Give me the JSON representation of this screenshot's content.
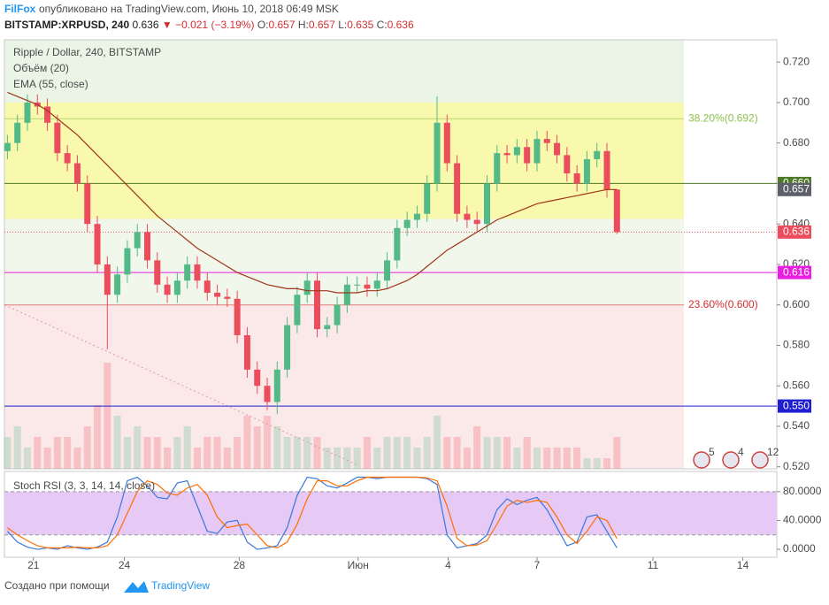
{
  "header": {
    "brand": "FilFox",
    "published": "опубликовано на TradingView.com, Июнь 10, 2018 06:49 MSK",
    "symbol": "BITSTAMP:XRPUSD, 240",
    "last": "0.636",
    "change": "▼ −0.021 (−3.19%)",
    "ohlc": [
      "O:",
      "0.657",
      "H:",
      "0.657",
      "L:",
      "0.635",
      "C:",
      "0.636"
    ]
  },
  "footer": {
    "text": "Создано при помощи",
    "brand": "TradingView"
  },
  "events": [
    "5",
    "4",
    "12"
  ],
  "chart_data": [
    {
      "type": "candlestick",
      "title": "Ripple / Dollar, 240, BITSTAMP",
      "x": [
        0,
        1,
        2,
        3,
        4,
        5,
        6,
        7,
        8,
        9,
        10,
        11,
        12,
        13,
        14,
        15,
        16,
        17,
        18,
        19,
        20,
        21,
        22,
        23,
        24,
        25,
        26,
        27,
        28,
        29,
        30,
        31,
        32,
        33,
        34,
        35,
        36,
        37,
        38,
        39,
        40,
        41,
        42,
        43,
        44,
        45,
        46,
        47,
        48,
        49,
        50,
        51,
        52,
        53,
        54,
        55,
        56,
        57,
        58,
        59,
        60,
        61
      ],
      "open": [
        0.676,
        0.68,
        0.69,
        0.7,
        0.698,
        0.69,
        0.675,
        0.67,
        0.66,
        0.64,
        0.62,
        0.605,
        0.615,
        0.628,
        0.636,
        0.622,
        0.61,
        0.605,
        0.612,
        0.62,
        0.612,
        0.606,
        0.604,
        0.603,
        0.585,
        0.568,
        0.56,
        0.552,
        0.568,
        0.59,
        0.605,
        0.612,
        0.588,
        0.59,
        0.6,
        0.61,
        0.61,
        0.608,
        0.612,
        0.622,
        0.638,
        0.642,
        0.645,
        0.66,
        0.69,
        0.67,
        0.645,
        0.642,
        0.64,
        0.66,
        0.675,
        0.674,
        0.678,
        0.67,
        0.682,
        0.68,
        0.674,
        0.665,
        0.66,
        0.672,
        0.676,
        0.657
      ],
      "high": [
        0.684,
        0.694,
        0.704,
        0.704,
        0.702,
        0.694,
        0.679,
        0.674,
        0.664,
        0.644,
        0.624,
        0.619,
        0.632,
        0.64,
        0.64,
        0.626,
        0.614,
        0.616,
        0.624,
        0.624,
        0.616,
        0.61,
        0.608,
        0.607,
        0.589,
        0.572,
        0.564,
        0.572,
        0.594,
        0.609,
        0.616,
        0.616,
        0.594,
        0.604,
        0.614,
        0.614,
        0.614,
        0.616,
        0.626,
        0.642,
        0.646,
        0.649,
        0.664,
        0.703,
        0.694,
        0.674,
        0.649,
        0.646,
        0.664,
        0.679,
        0.679,
        0.682,
        0.682,
        0.686,
        0.686,
        0.684,
        0.678,
        0.669,
        0.676,
        0.68,
        0.68,
        0.657
      ],
      "low": [
        0.672,
        0.676,
        0.686,
        0.694,
        0.686,
        0.671,
        0.666,
        0.656,
        0.636,
        0.616,
        0.578,
        0.601,
        0.611,
        0.624,
        0.618,
        0.606,
        0.601,
        0.601,
        0.608,
        0.608,
        0.602,
        0.6,
        0.599,
        0.581,
        0.564,
        0.556,
        0.548,
        0.546,
        0.564,
        0.586,
        0.601,
        0.584,
        0.584,
        0.586,
        0.596,
        0.606,
        0.604,
        0.604,
        0.608,
        0.618,
        0.634,
        0.638,
        0.641,
        0.656,
        0.666,
        0.641,
        0.638,
        0.636,
        0.636,
        0.656,
        0.67,
        0.67,
        0.666,
        0.666,
        0.676,
        0.67,
        0.661,
        0.656,
        0.656,
        0.668,
        0.653,
        0.635
      ],
      "close": [
        0.68,
        0.69,
        0.7,
        0.698,
        0.69,
        0.675,
        0.67,
        0.66,
        0.64,
        0.62,
        0.605,
        0.615,
        0.628,
        0.636,
        0.622,
        0.61,
        0.605,
        0.612,
        0.62,
        0.612,
        0.606,
        0.604,
        0.603,
        0.585,
        0.568,
        0.56,
        0.552,
        0.568,
        0.59,
        0.605,
        0.612,
        0.588,
        0.59,
        0.6,
        0.61,
        0.61,
        0.608,
        0.612,
        0.622,
        0.638,
        0.642,
        0.645,
        0.66,
        0.69,
        0.67,
        0.645,
        0.642,
        0.64,
        0.66,
        0.675,
        0.674,
        0.678,
        0.67,
        0.682,
        0.68,
        0.674,
        0.665,
        0.66,
        0.672,
        0.676,
        0.657,
        0.636
      ],
      "up_color": "#53b987",
      "down_color": "#eb4d5c",
      "volume": {
        "name": "Объём (20)",
        "vlim": [
          0,
          10
        ],
        "values": [
          3,
          4,
          2,
          3,
          2,
          3,
          3,
          2,
          4,
          6,
          10,
          5,
          3,
          4,
          3,
          3,
          2,
          3,
          4,
          2,
          3,
          3,
          2,
          3,
          5,
          4,
          5,
          4,
          3,
          3,
          3,
          3,
          2,
          2,
          2,
          2,
          3,
          2,
          3,
          3,
          3,
          2,
          3,
          5,
          3,
          3,
          2,
          4,
          3,
          3,
          3,
          2,
          3,
          2,
          2,
          2,
          2,
          2,
          1,
          1,
          1,
          3
        ]
      },
      "ema": {
        "name": "EMA (55, close)",
        "color": "#a0361b",
        "values": [
          0.705,
          0.703,
          0.701,
          0.699,
          0.696,
          0.692,
          0.688,
          0.684,
          0.679,
          0.674,
          0.669,
          0.664,
          0.659,
          0.654,
          0.649,
          0.644,
          0.64,
          0.636,
          0.632,
          0.628,
          0.625,
          0.622,
          0.619,
          0.616,
          0.614,
          0.612,
          0.61,
          0.609,
          0.608,
          0.608,
          0.607,
          0.607,
          0.607,
          0.606,
          0.606,
          0.606,
          0.607,
          0.607,
          0.608,
          0.61,
          0.612,
          0.615,
          0.619,
          0.623,
          0.627,
          0.63,
          0.633,
          0.636,
          0.639,
          0.642,
          0.644,
          0.646,
          0.648,
          0.65,
          0.651,
          0.652,
          0.653,
          0.654,
          0.655,
          0.656,
          0.657,
          0.657
        ]
      },
      "zones": [
        {
          "from": 0.7,
          "to": 0.731,
          "color": "#eaf5e6"
        },
        {
          "from": 0.6425,
          "to": 0.7,
          "color": "#f9f9ad"
        },
        {
          "from": 0.6,
          "to": 0.6425,
          "color": "#f1f7ea"
        },
        {
          "from": 0.519,
          "to": 0.6,
          "color": "#fbe9e9"
        }
      ],
      "fib": [
        {
          "value": 0.692,
          "label": "38.20%(0.692)",
          "color": "#8bc34a"
        },
        {
          "value": 0.6,
          "label": "23.60%(0.600)",
          "color": "#d32f2f"
        }
      ],
      "levels": [
        {
          "value": 0.66,
          "label": "0.660",
          "color": "#4f7a28"
        },
        {
          "value": 0.657,
          "label": "0.657",
          "color": "#5d606b"
        },
        {
          "value": 0.636,
          "label": "0.636",
          "color": "#eb4d5c"
        },
        {
          "value": 0.616,
          "label": "0.616",
          "color": "#e91ee0"
        },
        {
          "value": 0.55,
          "label": "0.550",
          "color": "#1e1ed2"
        }
      ],
      "trendline": {
        "x": [
          -0.3,
          35
        ],
        "y": [
          0.6,
          0.521
        ]
      },
      "xlim": [
        -0.3,
        77
      ],
      "xticks": [
        {
          "value": 2.6,
          "label": "21"
        },
        {
          "value": 11.7,
          "label": "24"
        },
        {
          "value": 23.2,
          "label": "28"
        },
        {
          "value": 35.1,
          "label": "Июн"
        },
        {
          "value": 44.1,
          "label": "4"
        },
        {
          "value": 53.0,
          "label": "7"
        },
        {
          "value": 64.6,
          "label": "11"
        },
        {
          "value": 73.6,
          "label": "14"
        }
      ],
      "ylim": [
        0.519,
        0.731
      ],
      "yticks": [
        {
          "value": 0.72,
          "label": "0.720"
        },
        {
          "value": 0.7,
          "label": "0.700"
        },
        {
          "value": 0.68,
          "label": "0.680"
        },
        {
          "value": 0.66,
          "label": "0.660"
        },
        {
          "value": 0.64,
          "label": "0.640"
        },
        {
          "value": 0.62,
          "label": "0.620"
        },
        {
          "value": 0.6,
          "label": "0.600"
        },
        {
          "value": 0.58,
          "label": "0.580"
        },
        {
          "value": 0.56,
          "label": "0.560"
        },
        {
          "value": 0.54,
          "label": "0.540"
        },
        {
          "value": 0.52,
          "label": "0.520"
        }
      ]
    },
    {
      "type": "line",
      "title": "Stoch RSI (3, 3, 14, 14, close)",
      "series": [
        {
          "color": "#3c78d8",
          "values": [
            25,
            10,
            3,
            0,
            2,
            0,
            5,
            2,
            0,
            3,
            10,
            45,
            95,
            100,
            88,
            72,
            70,
            92,
            95,
            60,
            25,
            22,
            38,
            40,
            10,
            0,
            2,
            5,
            30,
            75,
            100,
            98,
            88,
            85,
            92,
            100,
            100,
            98,
            100,
            100,
            100,
            100,
            98,
            90,
            20,
            2,
            5,
            8,
            20,
            55,
            70,
            62,
            68,
            72,
            55,
            30,
            5,
            10,
            45,
            48,
            25,
            2
          ]
        },
        {
          "color": "#ff6d00",
          "values": [
            30,
            20,
            12,
            5,
            2,
            2,
            2,
            3,
            2,
            2,
            5,
            20,
            50,
            80,
            95,
            90,
            78,
            75,
            85,
            90,
            75,
            45,
            30,
            33,
            35,
            20,
            5,
            2,
            10,
            35,
            70,
            95,
            95,
            88,
            88,
            95,
            100,
            100,
            100,
            100,
            100,
            100,
            99,
            95,
            60,
            15,
            5,
            6,
            12,
            35,
            60,
            68,
            65,
            68,
            65,
            45,
            20,
            8,
            25,
            45,
            40,
            15
          ]
        }
      ],
      "band": [
        20,
        80
      ],
      "band_color": "#e6c9f5",
      "ylim": [
        -11,
        108
      ],
      "yticks": [
        {
          "value": 80,
          "label": "80.0000"
        },
        {
          "value": 40,
          "label": "40.0000"
        },
        {
          "value": 0,
          "label": "0.0000"
        }
      ]
    }
  ]
}
